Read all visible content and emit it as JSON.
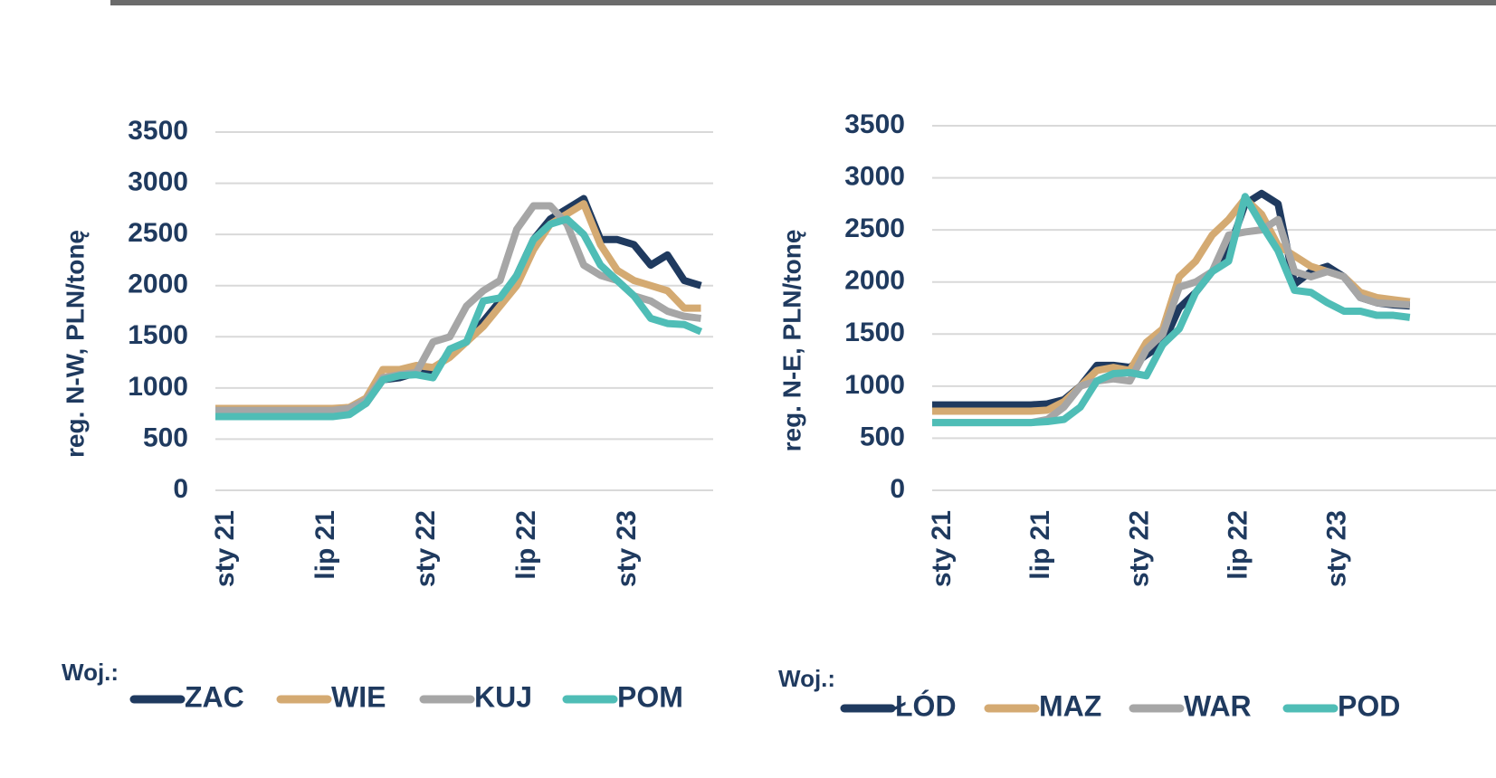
{
  "chart_data": [
    {
      "type": "line",
      "ylabel": "reg. N-W, PLN/tonę",
      "legend_title": "Woj.:",
      "categories": [
        "sty 21",
        null,
        null,
        null,
        null,
        null,
        "lip 21",
        null,
        null,
        null,
        null,
        null,
        "sty 22",
        null,
        null,
        null,
        null,
        null,
        "lip 22",
        null,
        null,
        null,
        null,
        null,
        "sty 23",
        null,
        null,
        null,
        null,
        null
      ],
      "ylim": [
        0,
        3500
      ],
      "yticks": [
        0,
        500,
        1000,
        1500,
        2000,
        2500,
        3000,
        3500
      ],
      "grid": true,
      "legend": "bottom",
      "series": [
        {
          "name": "ZAC",
          "color": "#1f3a5f",
          "values": [
            750,
            750,
            750,
            750,
            750,
            750,
            750,
            750,
            760,
            850,
            1080,
            1100,
            1150,
            1150,
            1350,
            1450,
            1650,
            1850,
            2100,
            2450,
            2650,
            2750,
            2850,
            2450,
            2450,
            2400,
            2200,
            2300,
            2050,
            2000
          ]
        },
        {
          "name": "WIE",
          "color": "#d4aa72",
          "values": [
            800,
            800,
            800,
            800,
            800,
            800,
            800,
            800,
            810,
            900,
            1180,
            1180,
            1220,
            1200,
            1300,
            1450,
            1600,
            1800,
            2000,
            2350,
            2600,
            2700,
            2800,
            2400,
            2150,
            2050,
            2000,
            1950,
            1780,
            1780
          ]
        },
        {
          "name": "KUJ",
          "color": "#a6a6a6",
          "values": [
            780,
            780,
            780,
            780,
            780,
            780,
            780,
            780,
            800,
            880,
            1100,
            1130,
            1150,
            1450,
            1500,
            1800,
            1950,
            2050,
            2550,
            2780,
            2780,
            2600,
            2200,
            2100,
            2050,
            1900,
            1850,
            1750,
            1700,
            1680
          ]
        },
        {
          "name": "POM",
          "color": "#4fbdb6",
          "values": [
            720,
            720,
            720,
            720,
            720,
            720,
            720,
            720,
            740,
            850,
            1080,
            1120,
            1130,
            1100,
            1380,
            1450,
            1850,
            1880,
            2100,
            2450,
            2600,
            2650,
            2500,
            2200,
            2050,
            1900,
            1680,
            1630,
            1620,
            1550
          ]
        }
      ]
    },
    {
      "type": "line",
      "ylabel": "reg. N-E, PLN/tonę",
      "legend_title": "Woj.:",
      "categories": [
        "sty 21",
        null,
        null,
        null,
        null,
        null,
        "lip 21",
        null,
        null,
        null,
        null,
        null,
        "sty 22",
        null,
        null,
        null,
        null,
        null,
        "lip 22",
        null,
        null,
        null,
        null,
        null,
        "sty 23",
        null,
        null,
        null,
        null,
        null
      ],
      "ylim": [
        0,
        3500
      ],
      "yticks": [
        0,
        500,
        1000,
        1500,
        2000,
        2500,
        3000,
        3500
      ],
      "grid": true,
      "legend": "bottom",
      "series": [
        {
          "name": "ŁÓD",
          "color": "#1f3a5f",
          "values": [
            820,
            820,
            820,
            820,
            820,
            820,
            820,
            830,
            870,
            1000,
            1200,
            1200,
            1180,
            1300,
            1400,
            1750,
            1900,
            2100,
            2300,
            2750,
            2850,
            2750,
            1980,
            2100,
            2150,
            2050,
            1850,
            1800,
            1780,
            1770
          ]
        },
        {
          "name": "MAZ",
          "color": "#d4aa72",
          "values": [
            760,
            760,
            760,
            760,
            760,
            760,
            760,
            770,
            850,
            1000,
            1150,
            1180,
            1150,
            1420,
            1550,
            2050,
            2200,
            2450,
            2600,
            2800,
            2650,
            2350,
            2250,
            2150,
            2100,
            2050,
            1900,
            1850,
            1830,
            1810
          ]
        },
        {
          "name": "WAR",
          "color": "#a6a6a6",
          "values": [
            650,
            650,
            650,
            650,
            650,
            650,
            650,
            680,
            800,
            1000,
            1050,
            1070,
            1050,
            1350,
            1500,
            1950,
            2000,
            2100,
            2450,
            2480,
            2500,
            2600,
            2100,
            2050,
            2100,
            2050,
            1850,
            1800,
            1790,
            1780
          ]
        },
        {
          "name": "POD",
          "color": "#4fbdb6",
          "values": [
            650,
            650,
            650,
            650,
            650,
            650,
            650,
            660,
            680,
            800,
            1050,
            1120,
            1130,
            1100,
            1400,
            1550,
            1900,
            2100,
            2200,
            2820,
            2550,
            2300,
            1920,
            1900,
            1800,
            1720,
            1720,
            1680,
            1680,
            1660
          ]
        }
      ]
    }
  ]
}
